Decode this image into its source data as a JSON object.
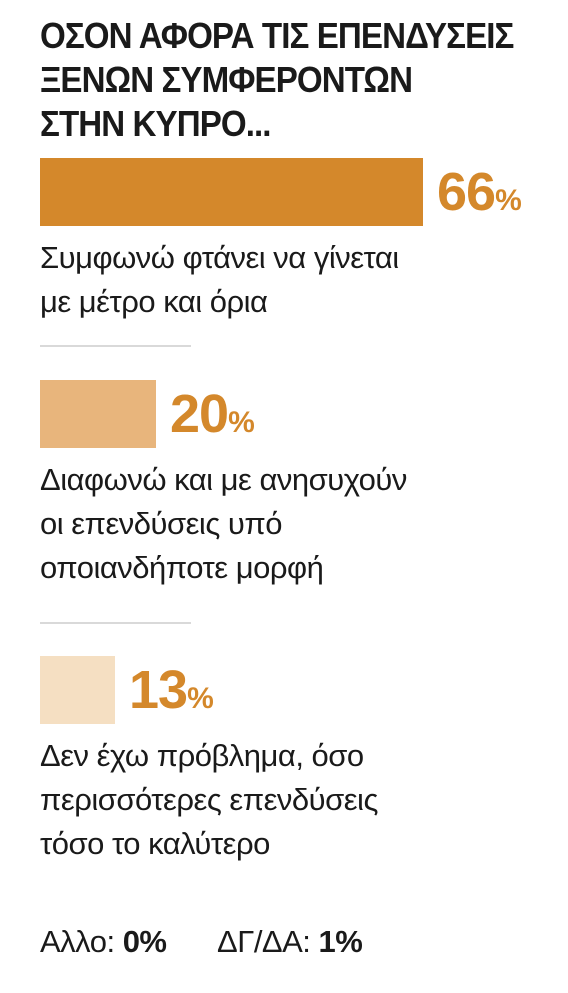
{
  "chart_data": {
    "type": "bar",
    "title_lines": [
      "ΟΣΟΝ ΑΦΟΡΑ ΤΙΣ ΕΠΕΝΔΥΣΕΙΣ",
      "ΞΕΝΩΝ ΣΥΜΦΕΡΟΝΤΩΝ",
      "ΣΤΗΝ ΚΥΠΡΟ..."
    ],
    "categories": [
      [
        "Συμφωνώ φτάνει να γίνεται",
        "με μέτρο και όρια"
      ],
      [
        "Διαφωνώ και με ανησυχούν",
        "οι επενδύσεις υπό",
        "οποιανδήποτε μορφή"
      ],
      [
        "Δεν έχω πρόβλημα, όσο",
        "περισσότερες επενδύσεις",
        "τόσο το καλύτερο"
      ]
    ],
    "values": [
      66,
      20,
      13
    ],
    "unit": "%",
    "colors": [
      "#d4882b",
      "#e8b57c",
      "#f5dfc2"
    ],
    "value_color": "#d4882b",
    "footer": [
      {
        "label": "Αλλο:",
        "value": "0%"
      },
      {
        "label": "ΔΓ/ΔΑ:",
        "value": "1%"
      }
    ]
  }
}
